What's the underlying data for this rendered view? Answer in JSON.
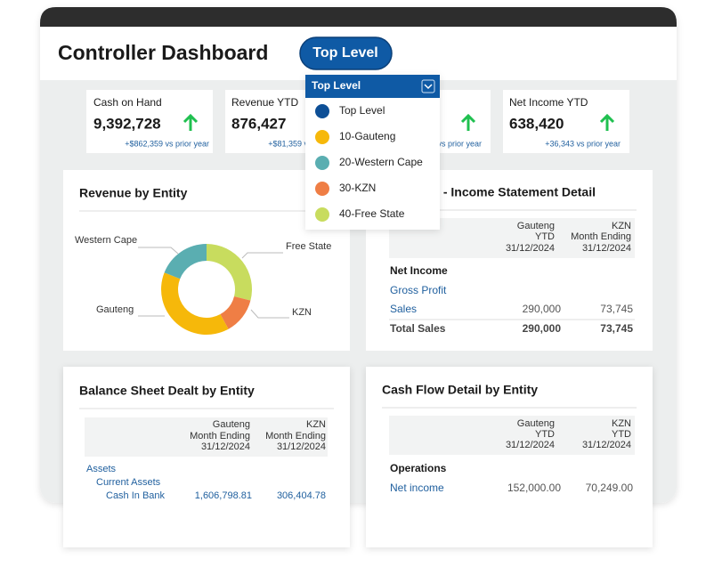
{
  "header": {
    "title": "Controller Dashboard",
    "level_button": "Top Level"
  },
  "dropdown": {
    "selected": "Top Level",
    "options": [
      "Top Level",
      "10-Gauteng",
      "20-Western Cape",
      "30-KZN",
      "40-Free State"
    ]
  },
  "kpis": [
    {
      "label": "Cash on Hand",
      "value": "9,392,728",
      "delta": "+$862,359 vs prior year"
    },
    {
      "label": "Revenue YTD",
      "value": "876,427",
      "delta": "+$81,359 vs prior year"
    },
    {
      "delta": "vs prior year"
    },
    {
      "label": "Net Income YTD",
      "value": "638,420",
      "delta": "+36,343 vs prior year"
    }
  ],
  "revenue_chart": {
    "type": "pie",
    "title": "Revenue by Entity",
    "categories": [
      "Free State",
      "KZN",
      "Gauteng",
      "Western Cape"
    ],
    "values": [
      29,
      13,
      39,
      19
    ],
    "colors": [
      "#c8dc5e",
      "#ef7e45",
      "#f6b80a",
      "#5aaeb1"
    ]
  },
  "income_statement": {
    "title": "s - Income Statement Detail",
    "columns": [
      [
        "Gauteng",
        "YTD",
        "31/12/2024"
      ],
      [
        "KZN",
        "Month Ending",
        "31/12/2024"
      ]
    ],
    "rows": [
      [
        "Net Income"
      ],
      [
        "Gross Profit"
      ],
      [
        "Sales",
        "290,000",
        "73,745"
      ],
      [
        "Total Sales",
        "290,000",
        "73,745"
      ]
    ]
  },
  "balance_sheet": {
    "title": "Balance Sheet Dealt by Entity",
    "columns": [
      [
        "Gauteng",
        "Month Ending",
        "31/12/2024"
      ],
      [
        "KZN",
        "Month Ending",
        "31/12/2024"
      ]
    ],
    "rows": [
      [
        "Assets"
      ],
      [
        "Current Assets"
      ],
      [
        "Cash In Bank",
        "1,606,798.81",
        "306,404.78"
      ]
    ]
  },
  "cash_flow": {
    "title": "Cash Flow Detail by Entity",
    "columns": [
      [
        "Gauteng",
        "YTD",
        "31/12/2024"
      ],
      [
        "KZN",
        "YTD",
        "31/12/2024"
      ]
    ],
    "rows": [
      [
        "Operations"
      ],
      [
        "Net income",
        "152,000.00",
        "70,249.00"
      ]
    ]
  }
}
